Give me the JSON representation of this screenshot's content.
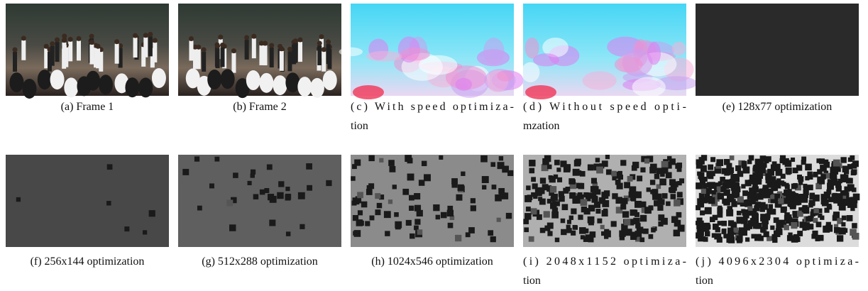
{
  "panels": [
    {
      "caption": [
        "(a) Frame 1"
      ]
    },
    {
      "caption": [
        "(b) Frame 2"
      ]
    },
    {
      "caption": [
        "(c) With speed optimiza-",
        "tion"
      ]
    },
    {
      "caption": [
        "(d) Without speed opti-",
        "mzation"
      ]
    },
    {
      "caption": [
        "(e) 128x77 optimization"
      ]
    },
    {
      "caption": [
        "(f) 256x144 optimization"
      ]
    },
    {
      "caption": [
        "(g) 512x288 optimization"
      ]
    },
    {
      "caption": [
        "(h) 1024x546 optimization"
      ]
    },
    {
      "caption": [
        "(i) 2048x1152 optimiza-",
        "tion"
      ]
    },
    {
      "caption": [
        "(j) 4096x2304 optimiza-",
        "tion"
      ]
    }
  ]
}
